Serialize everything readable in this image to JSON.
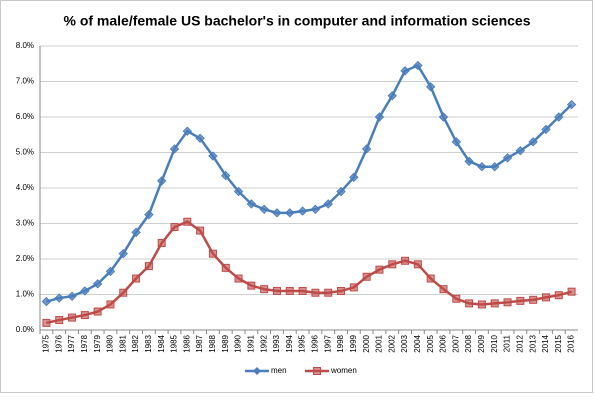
{
  "chart_data": {
    "type": "line",
    "title": "% of male/female US bachelor's in computer and information sciences",
    "categories": [
      "1975",
      "1976",
      "1977",
      "1978",
      "1979",
      "1980",
      "1981",
      "1982",
      "1983",
      "1984",
      "1985",
      "1986",
      "1987",
      "1988",
      "1989",
      "1990",
      "1991",
      "1992",
      "1993",
      "1994",
      "1995",
      "1996",
      "1997",
      "1998",
      "1999",
      "2000",
      "2001",
      "2002",
      "2003",
      "2004",
      "2005",
      "2006",
      "2007",
      "2008",
      "2009",
      "2010",
      "2011",
      "2012",
      "2013",
      "2014",
      "2015",
      "2016"
    ],
    "series": [
      {
        "name": "men",
        "color": "#4a7ebb",
        "marker": "diamond",
        "values": [
          0.8,
          0.9,
          0.95,
          1.1,
          1.3,
          1.65,
          2.15,
          2.75,
          3.25,
          4.2,
          5.1,
          5.6,
          5.4,
          4.9,
          4.35,
          3.9,
          3.55,
          3.4,
          3.3,
          3.3,
          3.35,
          3.4,
          3.55,
          3.9,
          4.3,
          5.1,
          6.0,
          6.6,
          7.3,
          7.45,
          6.85,
          6.0,
          5.3,
          4.75,
          4.6,
          4.6,
          4.85,
          5.05,
          5.3,
          5.65,
          6.0,
          6.35
        ]
      },
      {
        "name": "women",
        "color": "#be4b48",
        "marker": "square",
        "values": [
          0.2,
          0.28,
          0.35,
          0.42,
          0.52,
          0.72,
          1.05,
          1.45,
          1.8,
          2.45,
          2.9,
          3.05,
          2.8,
          2.15,
          1.75,
          1.45,
          1.25,
          1.15,
          1.1,
          1.1,
          1.1,
          1.05,
          1.05,
          1.1,
          1.2,
          1.5,
          1.7,
          1.85,
          1.95,
          1.85,
          1.45,
          1.15,
          0.88,
          0.75,
          0.72,
          0.75,
          0.78,
          0.82,
          0.85,
          0.92,
          0.98,
          1.08
        ]
      }
    ],
    "ylim": [
      0,
      8
    ],
    "yticks": [
      {
        "value": 0,
        "label": "0.0%"
      },
      {
        "value": 1,
        "label": "1.0%"
      },
      {
        "value": 2,
        "label": "2.0%"
      },
      {
        "value": 3,
        "label": "3.0%"
      },
      {
        "value": 4,
        "label": "4.0%"
      },
      {
        "value": 5,
        "label": "5.0%"
      },
      {
        "value": 6,
        "label": "6.0%"
      },
      {
        "value": 7,
        "label": "7.0%"
      },
      {
        "value": 8,
        "label": "8.0%"
      }
    ],
    "grid": true,
    "legend": "bottom"
  }
}
